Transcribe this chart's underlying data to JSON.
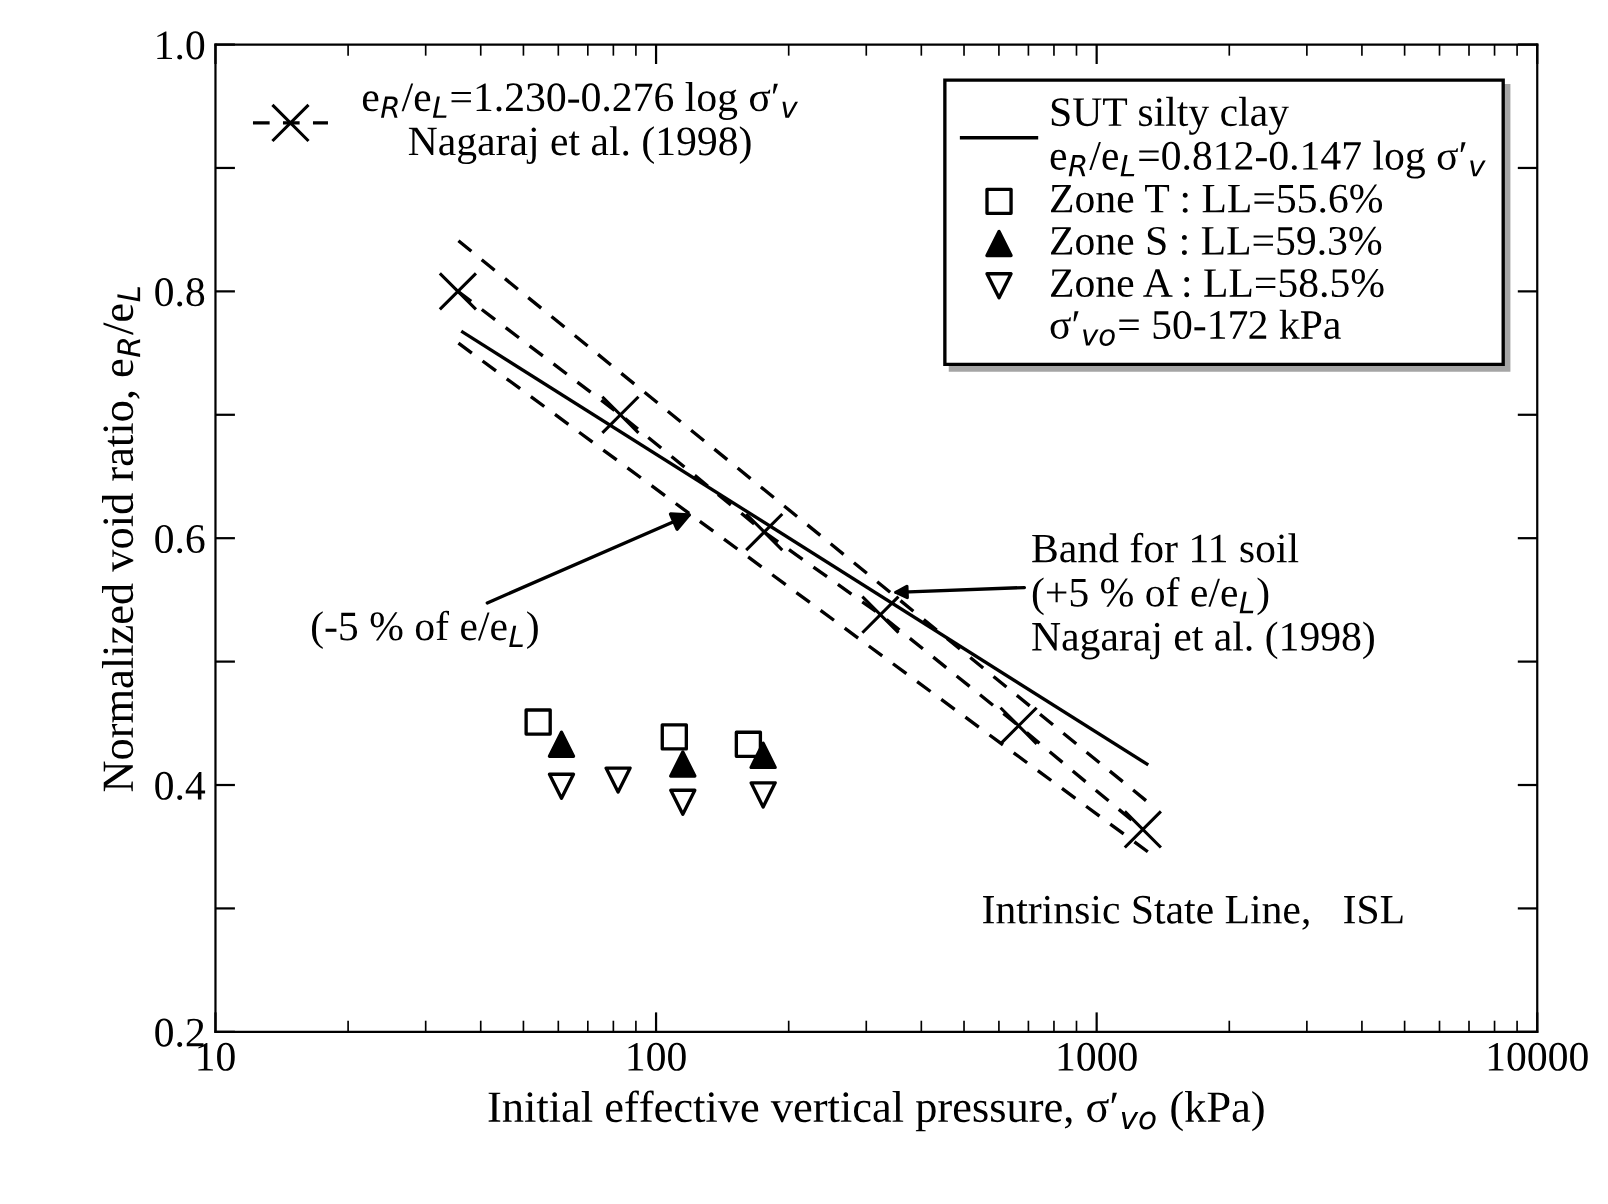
{
  "chart_data": {
    "type": "scatter",
    "xlabel": "Initial effective vertical pressure, σ′$_{vo}$ (kPa)",
    "ylabel": "Normalized void ratio, e$_{R}$/e$_{L}$",
    "log": "x",
    "xlim": [
      10,
      10000
    ],
    "xticks": [
      10,
      100,
      1000,
      10000
    ],
    "ylim": [
      0.2,
      1.0
    ],
    "yticks": [
      0.2,
      {
        "value": 0.3,
        "label": null
      },
      0.4,
      {
        "value": 0.5,
        "label": null
      },
      0.6,
      {
        "value": 0.7,
        "label": null
      },
      0.8,
      {
        "value": 0.9,
        "label": null
      },
      {
        "value": 1.0,
        "label": "1.0"
      }
    ],
    "grid": false,
    "legend": "top right",
    "series": [
      {
        "type": "line",
        "name": "e$_{R}$/e$_{L}$=1.230-0.276 log σ′$_{v}$\nNagaraj et al. (1998)",
        "color": "#000000",
        "marker": "cross",
        "line_style": "dashed",
        "x": [
          35.5,
          83,
          176,
          323,
          665,
          1273
        ],
        "values": [
          0.8,
          0.7,
          0.605,
          0.538,
          0.448,
          0.364
        ]
      },
      {
        "type": "line",
        "color": "#000000",
        "line_style": "dashed",
        "marker": "none",
        "x": [
          35.6,
          1340
        ],
        "values": [
          0.841,
          0.383
        ]
      },
      {
        "type": "line",
        "color": "#000000",
        "line_style": "dashed",
        "marker": "none",
        "x": [
          35.6,
          1340
        ],
        "values": [
          0.758,
          0.343
        ]
      },
      {
        "type": "line",
        "name": "SUT silty clay\ne$_{R}$/e$_{L}$=0.812-0.147 log σ′$_{v}$",
        "color": "#000000",
        "line_style": "solid",
        "marker": "none",
        "x": [
          36.4,
          1300
        ],
        "values": [
          0.767,
          0.417
        ]
      },
      {
        "name": "Zone T : LL=55.6%",
        "color": "#000000",
        "marker": "square",
        "x": [
          54,
          110,
          162
        ],
        "values": [
          0.451,
          0.439,
          0.433
        ]
      },
      {
        "name": "Zone S : LL=59.3%",
        "color": "#000000",
        "marker": "triangle",
        "x": [
          61,
          115,
          175
        ],
        "values": [
          0.433,
          0.417,
          0.424
        ]
      },
      {
        "name": "Zone A : LL=58.5%",
        "color": "#000000",
        "marker": "triangle_down",
        "x": [
          61,
          82,
          115,
          175
        ],
        "values": [
          0.399,
          0.404,
          0.386,
          0.392
        ]
      }
    ],
    "annotations": [
      "σ′$_{vo}$= 50-172 kPa",
      {
        "text": "(-5 % of e/e$_{L}$)",
        "x": 121,
        "y": 0.62
      },
      "Band for 11 soil\n(+5 % of e/e$_{L}$)\nNagaraj et al. (1998)",
      "Intrinsic State Line,   ISL"
    ]
  }
}
